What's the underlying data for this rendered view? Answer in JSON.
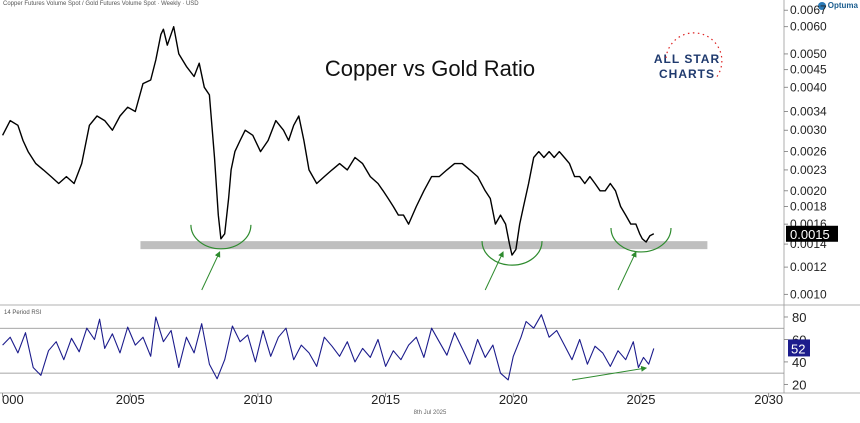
{
  "header": {
    "source": "Copper Futures Volume Spot / Gold Futures Volume Spot · Weekly · USD",
    "brand": "Optuma"
  },
  "footer": {
    "date": "8th Jul 2025"
  },
  "logo": {
    "line1": "ALL STAR",
    "line2": "CHARTS"
  },
  "colors": {
    "ratio_line": "#000000",
    "rsi_line": "#1c1c8c",
    "support_band": "#bfbfbf",
    "annotation": "#2e8b2e",
    "label_bg": "#000000",
    "rsi_label_bg": "#1c1c8c"
  },
  "chart_data": [
    {
      "type": "line",
      "title": "Copper vs Gold Ratio",
      "xlabel": "",
      "ylabel": "",
      "y_scale": "log",
      "xlim": [
        1999.9,
        2030.6
      ],
      "ylim": [
        0.00095,
        0.0068
      ],
      "x_ticks": [
        "000",
        "2005",
        "2010",
        "2015",
        "2020",
        "2025",
        "2030"
      ],
      "x_tick_values": [
        2000,
        2005,
        2010,
        2015,
        2020,
        2025,
        2030
      ],
      "y_ticks": [
        "0.0067",
        "0.0060",
        "0.0050",
        "0.0045",
        "0.0040",
        "0.0034",
        "0.0030",
        "0.0026",
        "0.0023",
        "0.0020",
        "0.0018",
        "0.0016",
        "0.0014",
        "0.0012",
        "0.0010"
      ],
      "y_tick_values": [
        0.0067,
        0.006,
        0.005,
        0.0045,
        0.004,
        0.0034,
        0.003,
        0.0026,
        0.0023,
        0.002,
        0.0018,
        0.0016,
        0.0014,
        0.0012,
        0.001
      ],
      "last_value_label": "0.0015",
      "last_value": 0.0015,
      "support_level": 0.00139,
      "series": [
        {
          "name": "",
          "x": [
            2000.0,
            2000.3,
            2000.6,
            2000.8,
            2001.0,
            2001.3,
            2001.6,
            2001.9,
            2002.2,
            2002.5,
            2002.8,
            2003.1,
            2003.4,
            2003.7,
            2004.0,
            2004.3,
            2004.6,
            2004.9,
            2005.2,
            2005.5,
            2005.8,
            2006.0,
            2006.2,
            2006.3,
            2006.45,
            2006.7,
            2006.9,
            2007.2,
            2007.5,
            2007.7,
            2007.9,
            2008.1,
            2008.3,
            2008.45,
            2008.55,
            2008.7,
            2008.85,
            2008.95,
            2009.1,
            2009.3,
            2009.5,
            2009.8,
            2010.1,
            2010.4,
            2010.7,
            2011.0,
            2011.2,
            2011.4,
            2011.6,
            2011.8,
            2012.0,
            2012.3,
            2012.6,
            2012.9,
            2013.2,
            2013.5,
            2013.8,
            2014.1,
            2014.4,
            2014.7,
            2014.9,
            2015.1,
            2015.3,
            2015.5,
            2015.7,
            2015.9,
            2016.2,
            2016.5,
            2016.8,
            2017.1,
            2017.4,
            2017.7,
            2018.0,
            2018.3,
            2018.6,
            2018.9,
            2019.1,
            2019.3,
            2019.5,
            2019.7,
            2019.85,
            2019.95,
            2020.1,
            2020.25,
            2020.4,
            2020.6,
            2020.8,
            2021.0,
            2021.2,
            2021.4,
            2021.6,
            2021.8,
            2022.0,
            2022.2,
            2022.4,
            2022.6,
            2022.8,
            2023.0,
            2023.2,
            2023.4,
            2023.6,
            2023.8,
            2024.0,
            2024.2,
            2024.4,
            2024.6,
            2024.8,
            2024.95,
            2025.05,
            2025.2,
            2025.35,
            2025.5
          ],
          "values": [
            0.0029,
            0.0032,
            0.0031,
            0.0028,
            0.0026,
            0.0024,
            0.0023,
            0.0022,
            0.0021,
            0.0022,
            0.0021,
            0.0024,
            0.0031,
            0.0033,
            0.0032,
            0.003,
            0.0033,
            0.0035,
            0.0034,
            0.0041,
            0.0042,
            0.0048,
            0.0057,
            0.0059,
            0.0053,
            0.006,
            0.005,
            0.0046,
            0.0043,
            0.0047,
            0.004,
            0.0038,
            0.0025,
            0.0017,
            0.00145,
            0.0015,
            0.0019,
            0.0023,
            0.0026,
            0.0028,
            0.003,
            0.0029,
            0.0026,
            0.0028,
            0.0032,
            0.003,
            0.0028,
            0.0031,
            0.0033,
            0.0028,
            0.0023,
            0.0021,
            0.0022,
            0.0023,
            0.0024,
            0.0023,
            0.0025,
            0.0024,
            0.0022,
            0.0021,
            0.002,
            0.0019,
            0.0018,
            0.0017,
            0.0017,
            0.0016,
            0.0018,
            0.002,
            0.0022,
            0.0022,
            0.0023,
            0.0024,
            0.0024,
            0.0023,
            0.0022,
            0.002,
            0.0019,
            0.0016,
            0.0017,
            0.0016,
            0.0014,
            0.0013,
            0.00135,
            0.0016,
            0.0018,
            0.0021,
            0.0025,
            0.0026,
            0.0025,
            0.0026,
            0.0025,
            0.0026,
            0.0025,
            0.0024,
            0.0022,
            0.0022,
            0.0021,
            0.0022,
            0.0021,
            0.002,
            0.002,
            0.0021,
            0.002,
            0.0018,
            0.0017,
            0.0016,
            0.0016,
            0.0015,
            0.00145,
            0.00142,
            0.00148,
            0.0015
          ]
        }
      ],
      "annotations": [
        {
          "type": "arc",
          "x": 2008.55,
          "value": 0.00145
        },
        {
          "type": "arc",
          "x": 2019.95,
          "value": 0.0013
        },
        {
          "type": "arc",
          "x": 2025.0,
          "value": 0.00142
        },
        {
          "type": "arrow",
          "x_from": 2007.8,
          "x_to": 2008.5
        },
        {
          "type": "arrow",
          "x_from": 2018.9,
          "x_to": 2019.6
        },
        {
          "type": "arrow",
          "x_from": 2024.1,
          "x_to": 2024.8
        }
      ]
    },
    {
      "type": "line",
      "title": "14 Period RSI",
      "xlabel": "",
      "ylabel": "",
      "ylim": [
        15,
        88
      ],
      "y_ticks": [
        "80",
        "60",
        "40",
        "20"
      ],
      "y_tick_values": [
        80,
        60,
        40,
        20
      ],
      "reference_lines": [
        70,
        30
      ],
      "last_value_label": "52",
      "last_value": 52,
      "series": [
        {
          "name": "",
          "x": [
            2000.0,
            2000.3,
            2000.6,
            2000.9,
            2001.2,
            2001.5,
            2001.8,
            2002.1,
            2002.4,
            2002.7,
            2003.0,
            2003.3,
            2003.6,
            2003.8,
            2004.0,
            2004.3,
            2004.6,
            2004.9,
            2005.2,
            2005.5,
            2005.8,
            2006.0,
            2006.3,
            2006.6,
            2006.9,
            2007.2,
            2007.5,
            2007.8,
            2008.1,
            2008.4,
            2008.7,
            2009.0,
            2009.3,
            2009.6,
            2009.9,
            2010.2,
            2010.5,
            2010.8,
            2011.1,
            2011.4,
            2011.7,
            2012.0,
            2012.3,
            2012.6,
            2012.9,
            2013.2,
            2013.5,
            2013.8,
            2014.1,
            2014.4,
            2014.7,
            2015.0,
            2015.3,
            2015.6,
            2015.9,
            2016.2,
            2016.5,
            2016.8,
            2017.1,
            2017.4,
            2017.7,
            2018.0,
            2018.3,
            2018.6,
            2018.9,
            2019.2,
            2019.5,
            2019.8,
            2020.0,
            2020.3,
            2020.5,
            2020.8,
            2021.1,
            2021.4,
            2021.7,
            2022.0,
            2022.3,
            2022.6,
            2022.9,
            2023.2,
            2023.5,
            2023.8,
            2024.1,
            2024.4,
            2024.7,
            2024.9,
            2025.1,
            2025.3,
            2025.5
          ],
          "values": [
            55,
            62,
            48,
            66,
            35,
            28,
            50,
            58,
            42,
            61,
            49,
            70,
            60,
            78,
            52,
            65,
            48,
            71,
            55,
            62,
            45,
            80,
            58,
            68,
            35,
            62,
            48,
            74,
            38,
            25,
            42,
            72,
            58,
            64,
            40,
            68,
            45,
            62,
            70,
            42,
            55,
            48,
            36,
            62,
            54,
            45,
            58,
            40,
            52,
            44,
            60,
            36,
            50,
            42,
            55,
            62,
            44,
            70,
            58,
            46,
            66,
            52,
            38,
            60,
            44,
            55,
            30,
            24,
            45,
            62,
            76,
            70,
            82,
            62,
            68,
            55,
            42,
            60,
            38,
            54,
            48,
            36,
            50,
            42,
            58,
            35,
            44,
            38,
            52
          ]
        }
      ],
      "annotations": [
        {
          "type": "arrow",
          "x_from": 2022.3,
          "x_to": 2025.2
        }
      ]
    }
  ]
}
